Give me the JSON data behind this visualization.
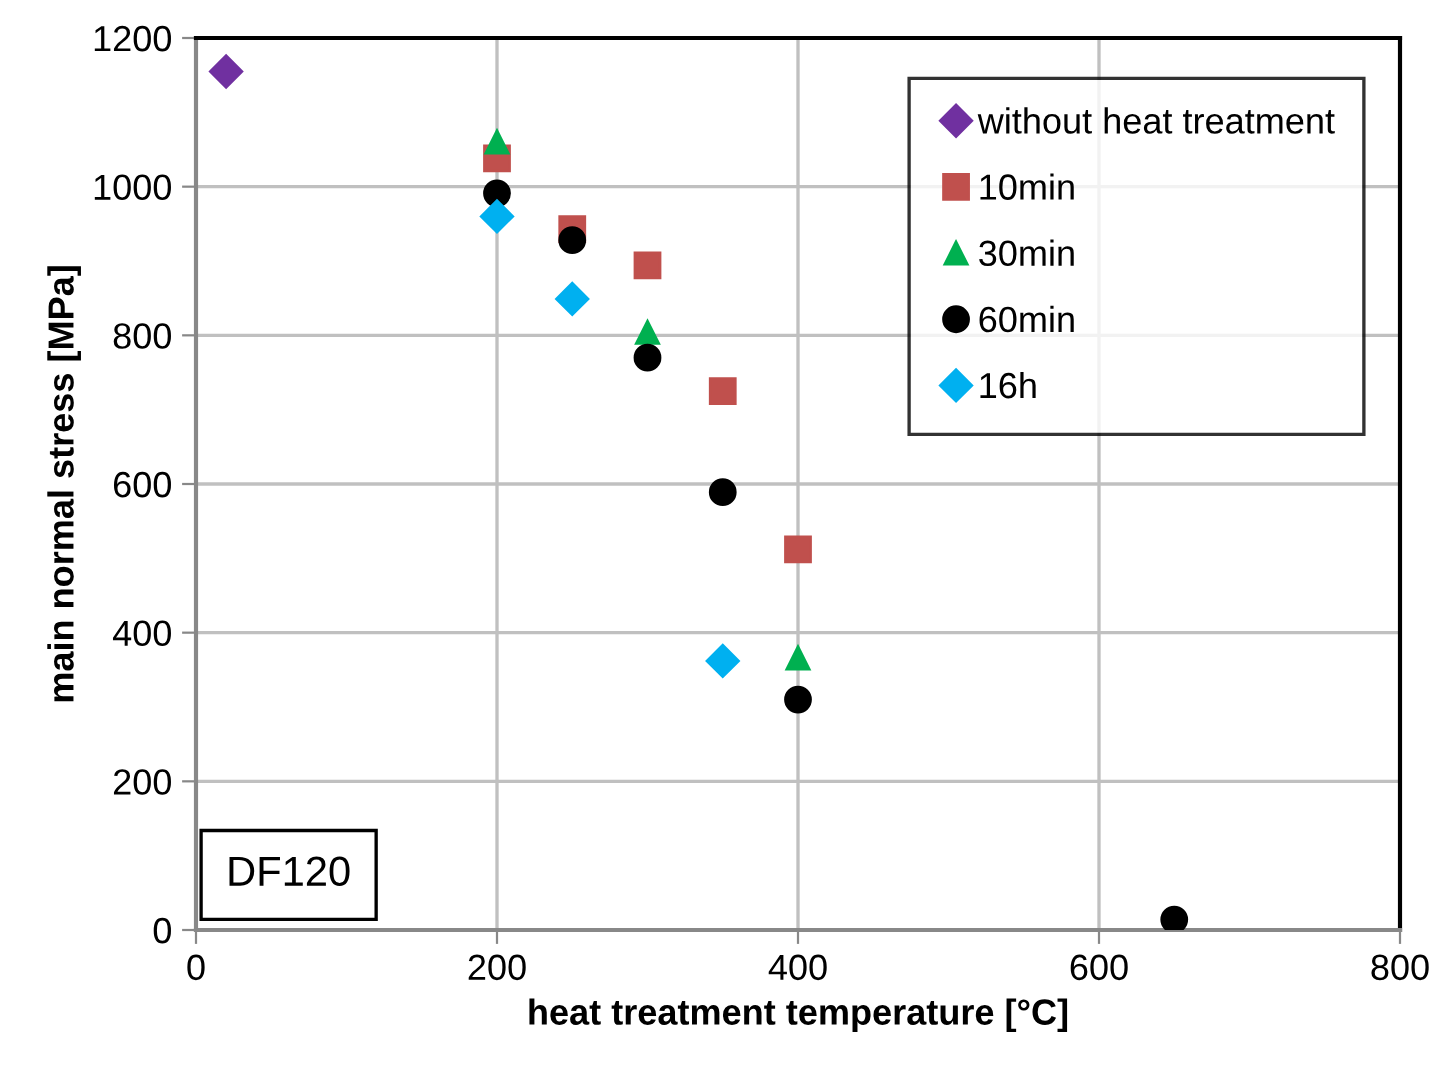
{
  "chart_data": {
    "type": "scatter",
    "xlabel": "heat treatment temperature [°C]",
    "ylabel": "main normal stress [MPa]",
    "xlim": [
      0,
      800
    ],
    "xticks": [
      0,
      200,
      400,
      600,
      800
    ],
    "ylim": [
      0,
      1200
    ],
    "yticks": [
      0,
      200,
      400,
      600,
      800,
      1000,
      1200
    ],
    "grid": true,
    "legend": "top right",
    "annotations": [
      "DF120"
    ],
    "series": [
      {
        "name": "without heat treatment",
        "color": "#7030a0",
        "marker": "diamond",
        "x": [
          20
        ],
        "values": [
          1155
        ]
      },
      {
        "name": "10min",
        "color": "#c0504d",
        "marker": "square",
        "x": [
          200,
          250,
          300,
          350,
          400
        ],
        "values": [
          1038,
          943,
          894,
          725,
          512
        ]
      },
      {
        "name": "30min",
        "color": "#00b050",
        "marker": "triangle",
        "x": [
          200,
          300,
          400
        ],
        "values": [
          1060,
          804,
          366
        ]
      },
      {
        "name": "60min",
        "color": "#000000",
        "marker": "circle",
        "x": [
          200,
          250,
          300,
          350,
          400,
          650
        ],
        "values": [
          991,
          928,
          770,
          589,
          310,
          14
        ]
      },
      {
        "name": "16h",
        "color": "#00b0f0",
        "marker": "diamond",
        "x": [
          200,
          250,
          350
        ],
        "values": [
          960,
          849,
          362
        ]
      }
    ]
  }
}
